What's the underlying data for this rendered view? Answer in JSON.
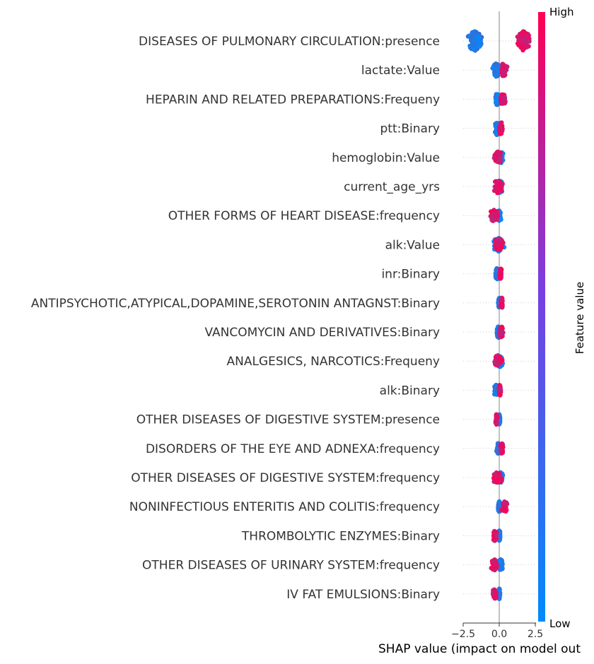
{
  "chart_data": {
    "type": "scatter",
    "subtype": "shap-beeswarm",
    "xlabel": "SHAP value (impact on model out",
    "xticks": [
      -2.5,
      0.0,
      2.5
    ],
    "xtick_labels": [
      "−2.5",
      "0.0",
      "2.5"
    ],
    "xlim": [
      -3.0,
      3.0
    ],
    "grid": false,
    "colorbar": {
      "title": "Feature value",
      "high_label": "High",
      "low_label": "Low",
      "low_color": "#008bfb",
      "high_color": "#ff0052"
    },
    "features": [
      {
        "name": "DISEASES OF PULMONARY CIRCULATION:presence",
        "low_range": [
          -2.3,
          -1.1
        ],
        "high_range": [
          1.2,
          2.2
        ],
        "spread": 1.0
      },
      {
        "name": "lactate:Value",
        "low_range": [
          -0.5,
          0.1
        ],
        "high_range": [
          0.0,
          0.6
        ],
        "spread": 0.6
      },
      {
        "name": "HEPARIN AND RELATED PREPARATIONS:Frequeny",
        "low_range": [
          -0.3,
          0.0
        ],
        "high_range": [
          0.0,
          0.5
        ],
        "spread": 0.5
      },
      {
        "name": "ptt:Binary",
        "low_range": [
          -0.4,
          0.1
        ],
        "high_range": [
          -0.1,
          0.3
        ],
        "spread": 0.6
      },
      {
        "name": "hemoglobin:Value",
        "low_range": [
          -0.1,
          0.3
        ],
        "high_range": [
          -0.5,
          0.3
        ],
        "spread": 0.5
      },
      {
        "name": "current_age_yrs",
        "low_range": [
          -0.2,
          0.3
        ],
        "high_range": [
          -0.5,
          0.3
        ],
        "spread": 0.6
      },
      {
        "name": "OTHER FORMS OF HEART DISEASE:frequency",
        "low_range": [
          -0.1,
          0.15
        ],
        "high_range": [
          -0.7,
          0.0
        ],
        "spread": 0.5
      },
      {
        "name": "alk:Value",
        "low_range": [
          -0.5,
          0.4
        ],
        "high_range": [
          -0.5,
          0.4
        ],
        "spread": 0.6
      },
      {
        "name": "inr:Binary",
        "low_range": [
          -0.3,
          0.0
        ],
        "high_range": [
          0.0,
          0.2
        ],
        "spread": 0.45
      },
      {
        "name": "ANTIPSYCHOTIC,ATYPICAL,DOPAMINE,SEROTONIN ANTAGNST:Binary",
        "low_range": [
          -0.1,
          0.1
        ],
        "high_range": [
          0.05,
          0.3
        ],
        "spread": 0.4
      },
      {
        "name": "VANCOMYCIN AND DERIVATIVES:Binary",
        "low_range": [
          -0.2,
          0.1
        ],
        "high_range": [
          0.0,
          0.3
        ],
        "spread": 0.5
      },
      {
        "name": "ANALGESICS, NARCOTICS:Frequeny",
        "low_range": [
          -0.2,
          0.3
        ],
        "high_range": [
          -0.5,
          0.3
        ],
        "spread": 0.5
      },
      {
        "name": "alk:Binary",
        "low_range": [
          -0.4,
          0.0
        ],
        "high_range": [
          -0.05,
          0.15
        ],
        "spread": 0.45
      },
      {
        "name": "OTHER DISEASES OF DIGESTIVE SYSTEM:presence",
        "low_range": [
          -0.1,
          0.1
        ],
        "high_range": [
          -0.3,
          -0.1
        ],
        "spread": 0.4
      },
      {
        "name": "DISORDERS OF THE EYE AND ADNEXA:frequency",
        "low_range": [
          -0.2,
          0.05
        ],
        "high_range": [
          0.05,
          0.3
        ],
        "spread": 0.45
      },
      {
        "name": "OTHER DISEASES OF DIGESTIVE SYSTEM:frequency",
        "low_range": [
          -0.1,
          0.3
        ],
        "high_range": [
          -0.6,
          0.3
        ],
        "spread": 0.4
      },
      {
        "name": "NONINFECTIOUS ENTERITIS AND COLITIS:frequency",
        "low_range": [
          -0.1,
          0.1
        ],
        "high_range": [
          0.05,
          0.7
        ],
        "spread": 0.4
      },
      {
        "name": "THROMBOLYTIC ENZYMES:Binary",
        "low_range": [
          -0.1,
          0.1
        ],
        "high_range": [
          -0.5,
          -0.1
        ],
        "spread": 0.4
      },
      {
        "name": "OTHER DISEASES OF URINARY SYSTEM:frequency",
        "low_range": [
          -0.1,
          0.3
        ],
        "high_range": [
          -0.7,
          0.0
        ],
        "spread": 0.45
      },
      {
        "name": "IV FAT EMULSIONS:Binary",
        "low_range": [
          -0.1,
          0.1
        ],
        "high_range": [
          -0.5,
          -0.1
        ],
        "spread": 0.4
      }
    ]
  }
}
